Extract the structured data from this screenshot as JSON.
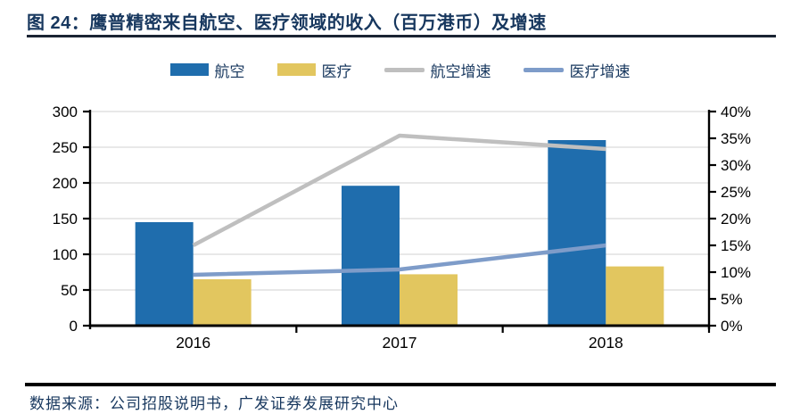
{
  "title": "图 24：鹰普精密来自航空、医疗领域的收入（百万港币）及增速",
  "footer": {
    "source": "数据来源：公司招股说明书，广发证券发展研究中心"
  },
  "colors": {
    "aviation_bar": "#1F6DAD",
    "medical_bar": "#E2C65F",
    "aviation_growth_line": "#BFBFBF",
    "medical_growth_line": "#7E9CC9",
    "title_navy": "#17375E",
    "rule_dark": "#1A2433",
    "gridline": "#D9D9D9",
    "axis": "#000000",
    "tick_label": "#000000"
  },
  "chart_data": {
    "type": "combo (bar + line, dual axis)",
    "title": "鹰普精密来自航空、医疗领域的收入（百万港币）及增速",
    "categories": [
      "2016",
      "2017",
      "2018"
    ],
    "series": [
      {
        "name": "航空",
        "kind": "bar",
        "axis": "left",
        "values": [
          145,
          196,
          260
        ],
        "color_key": "aviation_bar"
      },
      {
        "name": "医疗",
        "kind": "bar",
        "axis": "left",
        "values": [
          65,
          72,
          83
        ],
        "color_key": "medical_bar"
      },
      {
        "name": "航空增速",
        "kind": "line",
        "axis": "right",
        "values": [
          15,
          35.5,
          33
        ],
        "color_key": "aviation_growth_line"
      },
      {
        "name": "医疗增速",
        "kind": "line",
        "axis": "right",
        "values": [
          9.5,
          10.5,
          15
        ],
        "color_key": "medical_growth_line"
      }
    ],
    "left_axis": {
      "min": 0,
      "max": 300,
      "step": 50,
      "ticks": [
        "0",
        "50",
        "100",
        "150",
        "200",
        "250",
        "300"
      ]
    },
    "right_axis": {
      "min": 0,
      "max": 40,
      "step": 5,
      "ticks": [
        "0%",
        "5%",
        "10%",
        "15%",
        "20%",
        "25%",
        "30%",
        "35%",
        "40%"
      ]
    },
    "legend": {
      "position": "top",
      "entries": [
        "航空",
        "医疗",
        "航空增速",
        "医疗增速"
      ]
    },
    "grid": "horizontal gridlines at left-axis steps",
    "units_left": "百万港币",
    "units_right": "percent"
  }
}
